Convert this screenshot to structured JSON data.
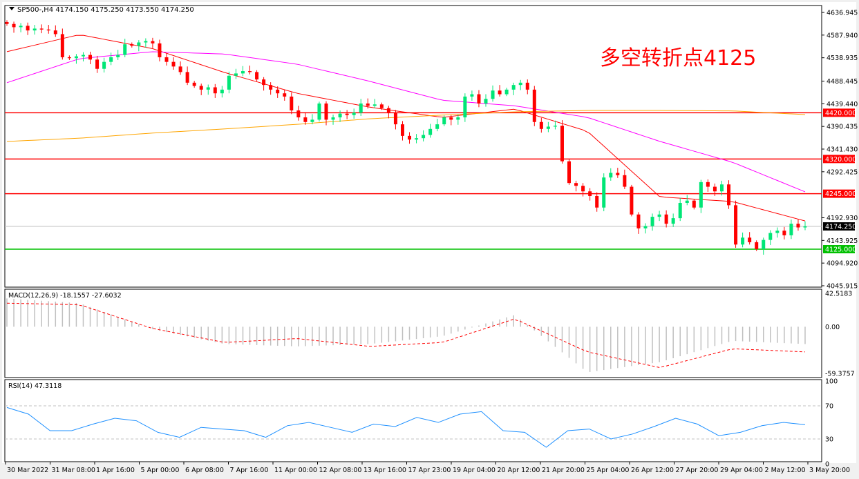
{
  "header": {
    "symbol_info": "SP500-,H4  4174.150 4175.250 4173.550 4174.250"
  },
  "annotation": {
    "text": "多空转折点4125",
    "color": "#ff0000"
  },
  "chart_data": [
    {
      "type": "candlestick",
      "title": "SP500-,H4",
      "ohlc_last": {
        "open": 4174.15,
        "high": 4175.25,
        "low": 4173.55,
        "close": 4174.25
      },
      "ylim": [
        4045.915,
        4636.945
      ],
      "y_ticks": [
        "4636.945",
        "4587.940",
        "4538.935",
        "4488.445",
        "4439.440",
        "4390.435",
        "4341.430",
        "4292.425",
        "4192.930",
        "4143.925",
        "4094.920",
        "4045.915"
      ],
      "x_ticks": [
        "30 Mar 2022",
        "31 Mar 08:00",
        "1 Apr 16:00",
        "5 Apr 00:00",
        "6 Apr 08:00",
        "7 Apr 16:00",
        "11 Apr 00:00",
        "12 Apr 08:00",
        "13 Apr 16:00",
        "17 Apr 23:00",
        "19 Apr 04:00",
        "20 Apr 12:00",
        "21 Apr 20:00",
        "25 Apr 04:00",
        "26 Apr 12:00",
        "27 Apr 20:00",
        "29 Apr 04:00",
        "2 May 12:00",
        "3 May 20:00"
      ],
      "closes": [
        4612,
        4605,
        4608,
        4598,
        4602,
        4600,
        4598,
        4590,
        4540,
        4538,
        4542,
        4545,
        4535,
        4515,
        4530,
        4540,
        4545,
        4568,
        4565,
        4572,
        4575,
        4570,
        4540,
        4530,
        4520,
        4508,
        4485,
        4478,
        4470,
        4475,
        4462,
        4470,
        4500,
        4505,
        4510,
        4508,
        4492,
        4480,
        4470,
        4462,
        4455,
        4425,
        4410,
        4400,
        4405,
        4440,
        4405,
        4410,
        4418,
        4415,
        4420,
        4440,
        4435,
        4438,
        4430,
        4420,
        4395,
        4370,
        4362,
        4365,
        4372,
        4385,
        4395,
        4410,
        4405,
        4410,
        4455,
        4460,
        4440,
        4450,
        4468,
        4460,
        4470,
        4480,
        4485,
        4470,
        4400,
        4385,
        4390,
        4392,
        4315,
        4268,
        4262,
        4250,
        4240,
        4215,
        4280,
        4290,
        4285,
        4260,
        4200,
        4170,
        4175,
        4195,
        4200,
        4180,
        4192,
        4225,
        4230,
        4215,
        4270,
        4260,
        4250,
        4265,
        4220,
        4135,
        4150,
        4140,
        4125,
        4145,
        4160,
        4165,
        4155,
        4180,
        4172,
        4174.25
      ],
      "moving_averages": [
        {
          "color": "#ff0000",
          "values": [
            4552,
            4589,
            4559,
            4507,
            4462,
            4432,
            4410,
            4428,
            4380,
            4238,
            4228,
            4186
          ]
        },
        {
          "color": "#ff00ff",
          "values": [
            4485,
            4537,
            4552,
            4547,
            4525,
            4488,
            4447,
            4435,
            4410,
            4358,
            4313,
            4249
          ]
        },
        {
          "color": "#ffa500",
          "values": [
            4358,
            4365,
            4376,
            4385,
            4395,
            4407,
            4415,
            4422,
            4425,
            4425,
            4424,
            4416
          ]
        }
      ],
      "levels": [
        {
          "value": 4420.0,
          "label": "4420.000",
          "color": "#ff0000"
        },
        {
          "value": 4320.0,
          "label": "4320.000",
          "color": "#ff0000"
        },
        {
          "value": 4245.0,
          "label": "4245.000",
          "color": "#ff0000"
        },
        {
          "value": 4125.0,
          "label": "4125.000",
          "color": "#00c000"
        }
      ],
      "current_price": {
        "value": 4174.25,
        "label": "4174.250"
      },
      "bull_color": "#00e676",
      "bear_color": "#ff0000"
    },
    {
      "type": "bar+line",
      "title": "MACD(12,26,9) -18.1557 -27.6032",
      "ylim": [
        -59.3757,
        42.5183
      ],
      "y_ticks": [
        "42.5183",
        "0.00",
        "-59.3757"
      ],
      "histogram": [
        36,
        30,
        -3,
        -22,
        -25,
        -22,
        -12,
        15,
        -58,
        -45,
        -18,
        -22
      ],
      "signal": [
        30,
        28,
        -2,
        -20,
        -15,
        -25,
        -20,
        10,
        -32,
        -52,
        -28,
        -32
      ]
    },
    {
      "type": "line",
      "title": "RSI(14) 47.3118",
      "ylim": [
        0,
        100
      ],
      "y_ticks": [
        "100",
        "70",
        "30",
        "0"
      ],
      "levels": [
        70,
        30
      ],
      "values": [
        68,
        60,
        40,
        40,
        48,
        55,
        52,
        38,
        32,
        44,
        42,
        40,
        32,
        46,
        50,
        44,
        38,
        48,
        45,
        56,
        50,
        60,
        63,
        40,
        38,
        20,
        40,
        42,
        30,
        36,
        45,
        55,
        48,
        34,
        38,
        46,
        50,
        47.3
      ]
    }
  ]
}
